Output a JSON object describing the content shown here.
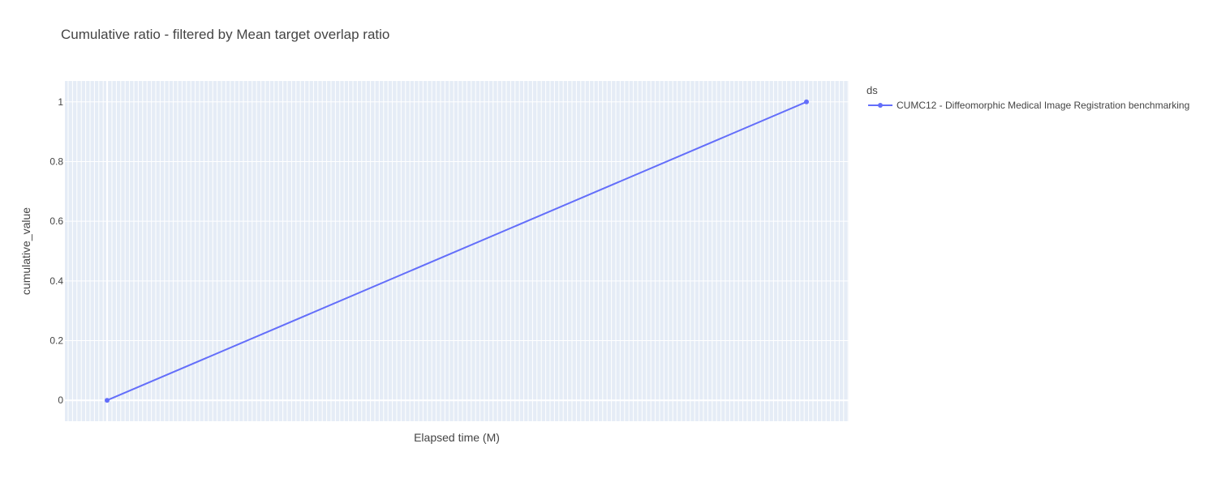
{
  "chart_data": {
    "type": "line",
    "title": "Cumulative ratio - filtered by Mean target overlap ratio",
    "xlabel": "Elapsed time (M)",
    "ylabel": "cumulative_value",
    "ylim": [
      -0.07,
      1.07
    ],
    "yticks": [
      0,
      0.2,
      0.4,
      0.6,
      0.8,
      1
    ],
    "ytick_labels": [
      "0",
      "0.2",
      "0.4",
      "0.6",
      "0.8",
      "1"
    ],
    "x_tick_labels_shown": false,
    "grid": true,
    "legend": {
      "title": "ds",
      "placement": "top-right"
    },
    "series": [
      {
        "name": "CUMC12 - Diffeomorphic Medical Image Registration benchmarking",
        "color": "#636efa",
        "x": [
          0,
          1
        ],
        "values": [
          0,
          1
        ],
        "mode": "lines+markers"
      }
    ]
  }
}
